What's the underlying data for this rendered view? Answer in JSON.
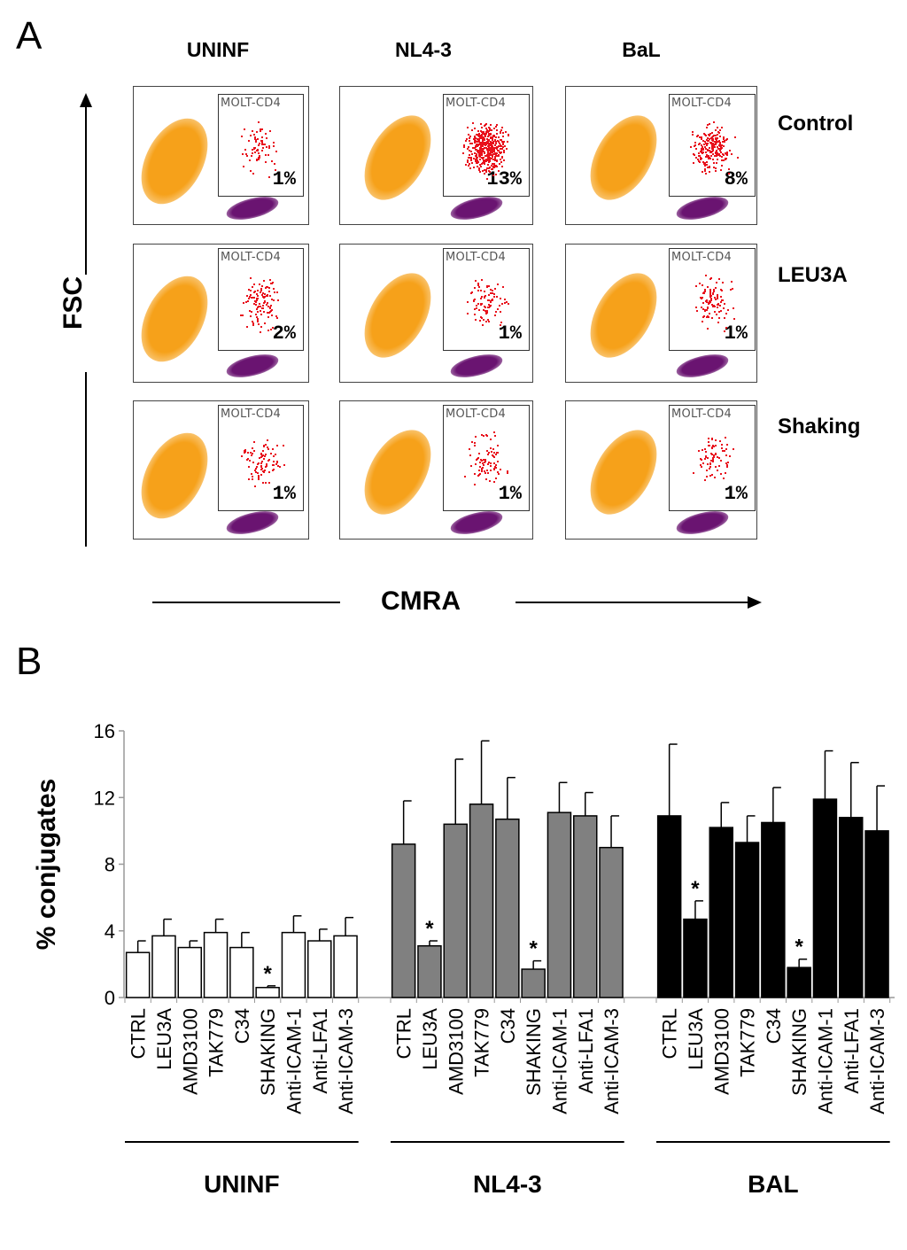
{
  "panelA": {
    "letter": "A",
    "columns": [
      "UNINF",
      "NL4-3",
      "BaL"
    ],
    "rows": [
      "Control",
      "LEU3A",
      "Shaking"
    ],
    "gate_label": "MOLT-CD4",
    "y_axis": "FSC",
    "x_axis": "CMRA",
    "percentages": [
      [
        "1%",
        "13%",
        "8%"
      ],
      [
        "2%",
        "1%",
        "1%"
      ],
      [
        "1%",
        "1%",
        "1%"
      ]
    ],
    "colors": {
      "cells": "#f6a11a",
      "target": "#6a1471",
      "conjugates": "#e8111c"
    }
  },
  "panelB": {
    "letter": "B"
  },
  "chart_data": {
    "type": "bar",
    "ylabel": "% conjugates",
    "xlabel": "",
    "ylim": [
      0,
      16
    ],
    "yticks": [
      0,
      4,
      8,
      12,
      16
    ],
    "categories": [
      "CTRL",
      "LEU3A",
      "AMD3100",
      "TAK779",
      "C34",
      "SHAKING",
      "Anti-ICAM-1",
      "Anti-LFA1",
      "Anti-ICAM-3"
    ],
    "series": [
      {
        "name": "UNINF",
        "color": "#ffffff",
        "values": [
          2.7,
          3.7,
          3.0,
          3.9,
          3.0,
          0.6,
          3.9,
          3.4,
          3.7
        ],
        "errors": [
          0.7,
          1.0,
          0.4,
          0.8,
          0.9,
          0.1,
          1.0,
          0.7,
          1.1
        ],
        "significant": [
          false,
          false,
          false,
          false,
          false,
          true,
          false,
          false,
          false
        ]
      },
      {
        "name": "NL4-3",
        "color": "#808080",
        "values": [
          9.2,
          3.1,
          10.4,
          11.6,
          10.7,
          1.7,
          11.1,
          10.9,
          9.0
        ],
        "errors": [
          2.6,
          0.3,
          3.9,
          3.8,
          2.5,
          0.5,
          1.8,
          1.4,
          1.9
        ],
        "significant": [
          false,
          true,
          false,
          false,
          false,
          true,
          false,
          false,
          false
        ]
      },
      {
        "name": "BAL",
        "color": "#000000",
        "values": [
          10.9,
          4.7,
          10.2,
          9.3,
          10.5,
          1.8,
          11.9,
          10.8,
          10.0
        ],
        "errors": [
          4.3,
          1.1,
          1.5,
          1.6,
          2.1,
          0.5,
          2.9,
          3.3,
          2.7
        ],
        "significant": [
          false,
          true,
          false,
          false,
          false,
          true,
          false,
          false,
          false
        ]
      }
    ],
    "significance_mark": "*"
  }
}
